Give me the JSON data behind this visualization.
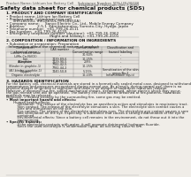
{
  "bg_color": "#f0ede8",
  "header_left": "Product Name: Lithium Ion Battery Cell",
  "header_right_line1": "Substance Number: SDS-LIB-0001B",
  "header_right_line2": "Established / Revision: Dec.7.2010",
  "title": "Safety data sheet for chemical products (SDS)",
  "section1_title": "1. PRODUCT AND COMPANY IDENTIFICATION",
  "section1_lines": [
    "• Product name: Lithium Ion Battery Cell",
    "• Product code: Cylindrical-type cell",
    "      (IHR18650U, IHR18650L, IHR18650A)",
    "• Company name:     Sanyo Electric Co., Ltd., Mobile Energy Company",
    "• Address:           2-5-1  Kamitakamatsu, Sumoto-City, Hyogo, Japan",
    "• Telephone number:  +81-799-26-4111",
    "• Fax number:  +81-799-26-4120",
    "• Emergency telephone number (daytime): +81-799-26-3962",
    "                                       (Night and holiday): +81-799-26-4101"
  ],
  "section2_title": "2. COMPOSITION / INFORMATION ON INGREDIENTS",
  "section2_intro": "• Substance or preparation: Preparation",
  "section2_sub": "  Information about the chemical nature of product",
  "table_col_names": [
    "Component /\nchemical name",
    "CAS number",
    "Concentration /\nConcentration range",
    "Classification and\nhazard labeling"
  ],
  "table_rows": [
    [
      "Lithium cobalt oxide\n(LiMn-Co-Ni(O))",
      "-",
      "30-60%",
      "-"
    ],
    [
      "Iron",
      "7439-89-6",
      "10-25%",
      "-"
    ],
    [
      "Aluminum",
      "7429-90-5",
      "2-8%",
      "-"
    ],
    [
      "Graphite\n(Binder in graphite-1)\n(All-binder graphite-1)",
      "7782-42-5\n7782-44-2",
      "10-25%",
      "-"
    ],
    [
      "Copper",
      "7440-50-8",
      "5-15%",
      "Sensitization of the skin\ngroup No.2"
    ],
    [
      "Organic electrolyte",
      "-",
      "10-20%",
      "Inflammable liquid"
    ]
  ],
  "section3_title": "3. HAZARDS IDENTIFICATION",
  "section3_para": [
    "For the battery cell, chemical materials are stored in a hermetically sealed metal case, designed to withstand",
    "temperatures and pressures encountered during normal use. As a result, during normal use, there is no",
    "physical danger of ignition or explosion and there is no danger of hazardous materials leakage.",
    "However, if exposed to a fire, added mechanical shocks, decomposed, where electric shock may occur,",
    "the gas release vent will be operated. The battery cell case will be breached at fire-patterns, hazardous",
    "materials may be released.",
    "Moreover, if heated strongly by the surrounding fire, some gas may be emitted."
  ],
  "section3_bullet1": "• Most important hazard and effects:",
  "section3_health": "     Human health effects:",
  "section3_health_lines": [
    "          Inhalation: The release of the electrolyte has an anesthesia action and stimulates in respiratory tract.",
    "          Skin contact: The release of the electrolyte stimulates a skin. The electrolyte skin contact causes a",
    "          sore and stimulation on the skin.",
    "          Eye contact: The release of the electrolyte stimulates eyes. The electrolyte eye contact causes a sore",
    "          and stimulation on the eye. Especially, a substance that causes a strong inflammation of the eye is",
    "          contained.",
    "          Environmental effects: Since a battery cell remains in the environment, do not throw out it into the",
    "          environment."
  ],
  "section3_bullet2": "• Specific hazards:",
  "section3_specific": [
    "          If the electrolyte contacts with water, it will generate detrimental hydrogen fluoride.",
    "          Since the used electrolyte is inflammable liquid, do not bring close to fire."
  ]
}
